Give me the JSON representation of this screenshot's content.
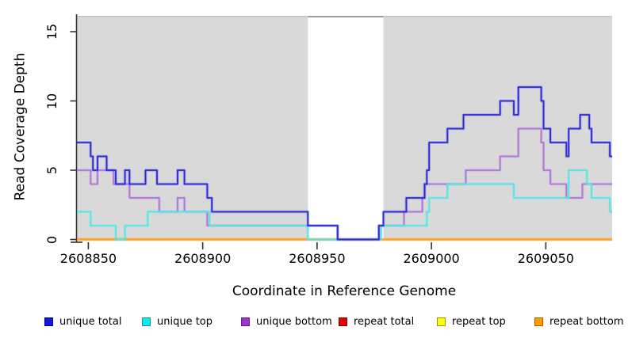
{
  "chart_data": {
    "type": "line",
    "step": true,
    "title": "",
    "xlabel": "Coordinate in Reference Genome",
    "ylabel": "Read Coverage Depth",
    "xlim": [
      2608845,
      2609079
    ],
    "ylim": [
      0,
      16.3
    ],
    "x_ticks": [
      2608850,
      2608900,
      2608950,
      2609000,
      2609050
    ],
    "x_tick_labels": [
      "2608850",
      "2608900",
      "2608950",
      "2609000",
      "2609050"
    ],
    "y_ticks": [
      0,
      5,
      10,
      15
    ],
    "y_tick_labels": [
      "0",
      "5",
      "10",
      "15"
    ],
    "grid": false,
    "plot_bg": "#d9d9d9",
    "masked_region": {
      "x_start": 2608946,
      "x_end": 2608979,
      "color": "#ffffff",
      "border_color": "#9c9c9c"
    },
    "axis_color": "#333333",
    "series": [
      {
        "name": "unique total",
        "color": "#2b2bd8",
        "points": [
          [
            2608845,
            7
          ],
          [
            2608851,
            6
          ],
          [
            2608852,
            5
          ],
          [
            2608854,
            6
          ],
          [
            2608858,
            5
          ],
          [
            2608862,
            4
          ],
          [
            2608866,
            5
          ],
          [
            2608868,
            4
          ],
          [
            2608875,
            5
          ],
          [
            2608880,
            4
          ],
          [
            2608889,
            5
          ],
          [
            2608892,
            4
          ],
          [
            2608902,
            3
          ],
          [
            2608904,
            2
          ],
          [
            2608946,
            1
          ],
          [
            2608959,
            0
          ],
          [
            2608977,
            1
          ],
          [
            2608979,
            2
          ],
          [
            2608989,
            3
          ],
          [
            2608997,
            4
          ],
          [
            2608998,
            5
          ],
          [
            2608999,
            7
          ],
          [
            2609007,
            8
          ],
          [
            2609014,
            9
          ],
          [
            2609030,
            10
          ],
          [
            2609036,
            9
          ],
          [
            2609038,
            11
          ],
          [
            2609048,
            10
          ],
          [
            2609049,
            8
          ],
          [
            2609052,
            7
          ],
          [
            2609059,
            6
          ],
          [
            2609060,
            8
          ],
          [
            2609065,
            9
          ],
          [
            2609069,
            8
          ],
          [
            2609070,
            7
          ],
          [
            2609078,
            6
          ],
          [
            2609079,
            6
          ]
        ]
      },
      {
        "name": "unique top",
        "color": "#55e6e6",
        "points": [
          [
            2608845,
            2
          ],
          [
            2608851,
            1
          ],
          [
            2608862,
            0
          ],
          [
            2608866,
            1
          ],
          [
            2608876,
            2
          ],
          [
            2608903,
            1
          ],
          [
            2608946,
            0
          ],
          [
            2608978,
            1
          ],
          [
            2608998,
            2
          ],
          [
            2608999,
            3
          ],
          [
            2609007,
            4
          ],
          [
            2609036,
            3
          ],
          [
            2609060,
            5
          ],
          [
            2609068,
            4
          ],
          [
            2609070,
            3
          ],
          [
            2609078,
            2
          ],
          [
            2609079,
            2
          ]
        ]
      },
      {
        "name": "unique bottom",
        "color": "#b176d9",
        "points": [
          [
            2608845,
            5
          ],
          [
            2608851,
            4
          ],
          [
            2608854,
            5
          ],
          [
            2608861,
            4
          ],
          [
            2608868,
            3
          ],
          [
            2608881,
            2
          ],
          [
            2608889,
            3
          ],
          [
            2608892,
            2
          ],
          [
            2608902,
            1
          ],
          [
            2608959,
            0
          ],
          [
            2608977,
            1
          ],
          [
            2608988,
            2
          ],
          [
            2608996,
            3
          ],
          [
            2608997,
            4
          ],
          [
            2609015,
            5
          ],
          [
            2609030,
            6
          ],
          [
            2609038,
            8
          ],
          [
            2609048,
            7
          ],
          [
            2609049,
            5
          ],
          [
            2609052,
            4
          ],
          [
            2609059,
            3
          ],
          [
            2609066,
            4
          ],
          [
            2609079,
            4
          ]
        ]
      },
      {
        "name": "repeat total",
        "color": "#e60000",
        "points": [
          [
            2608845,
            0
          ],
          [
            2609079,
            0
          ]
        ]
      },
      {
        "name": "repeat top",
        "color": "#ffff00",
        "points": [
          [
            2608845,
            0
          ],
          [
            2609079,
            0
          ]
        ]
      },
      {
        "name": "repeat bottom",
        "color": "#ffa028",
        "points": [
          [
            2608845,
            0
          ],
          [
            2609079,
            0
          ]
        ]
      }
    ],
    "draw_order": [
      "repeat total",
      "repeat top",
      "repeat bottom",
      "unique bottom",
      "unique top",
      "unique total"
    ],
    "legend": [
      {
        "label": "unique total",
        "fill": "#1414dc",
        "border": "#0000a0"
      },
      {
        "label": "unique top",
        "fill": "#00f0f0",
        "border": "#2e8b8b"
      },
      {
        "label": "unique bottom",
        "fill": "#9b33d1",
        "border": "#5c1e80"
      },
      {
        "label": "repeat total",
        "fill": "#e60000",
        "border": "#8b0000"
      },
      {
        "label": "repeat top",
        "fill": "#ffff00",
        "border": "#999900"
      },
      {
        "label": "repeat bottom",
        "fill": "#ff9d00",
        "border": "#a66400"
      }
    ],
    "legend_position": "bottom"
  }
}
